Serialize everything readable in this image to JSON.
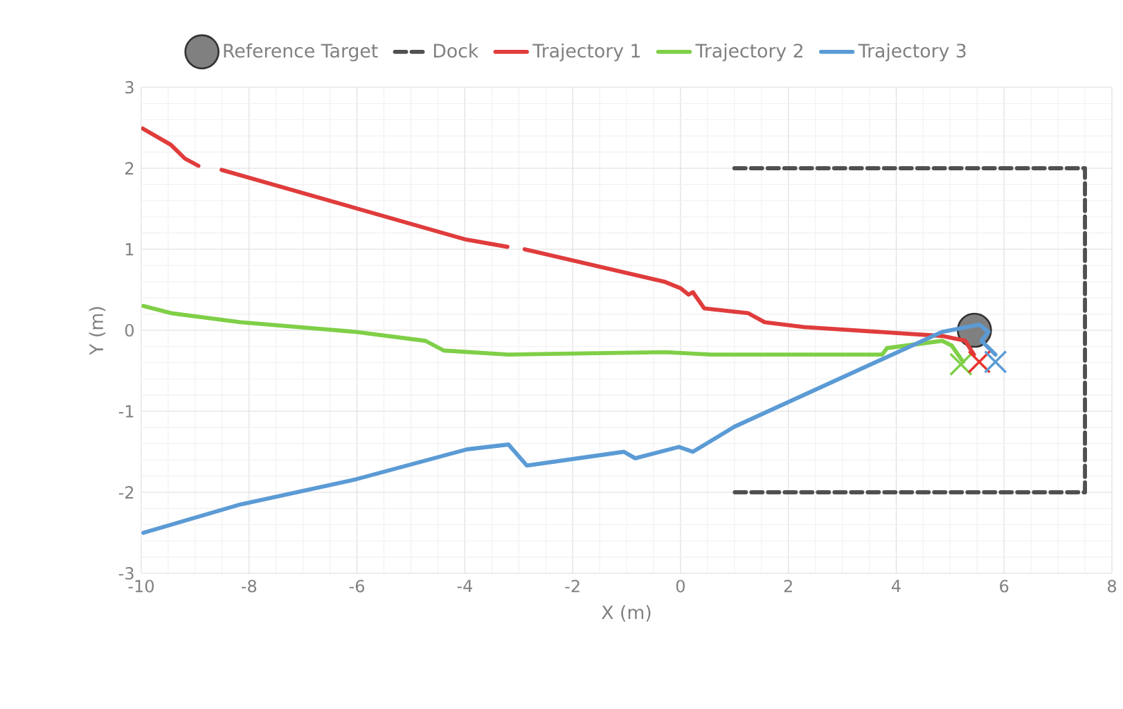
{
  "chart_data": {
    "type": "line",
    "xlabel": "X (m)",
    "ylabel": "Y (m)",
    "xlim": [
      -10,
      8
    ],
    "ylim": [
      -3,
      3
    ],
    "xticks": [
      -10,
      -8,
      -6,
      -4,
      -2,
      0,
      2,
      4,
      6,
      8
    ],
    "yticks": [
      -3,
      -2,
      -1,
      0,
      1,
      2,
      3
    ],
    "grid": true,
    "legend": "top",
    "series": [
      {
        "name": "Reference Target",
        "type": "scatter",
        "marker": "circle",
        "color": "#808080",
        "x": [
          5.45
        ],
        "values": [
          0.0
        ]
      },
      {
        "name": "Dock",
        "line_style": "dashed",
        "color": "#505050",
        "x": [
          1.0,
          7.5,
          7.5,
          1.0
        ],
        "values": [
          2.0,
          2.0,
          -2.0,
          -2.0
        ]
      },
      {
        "name": "Trajectory 1",
        "color": "#e03c3c",
        "x": [
          -9.97,
          -9.45,
          -9.19,
          -8.94,
          -8.8,
          -8.51,
          -3.98,
          -3.21,
          -3.05,
          -2.89,
          -0.3,
          0.0,
          0.15,
          0.23,
          0.44,
          1.26,
          1.56,
          2.29,
          4.85,
          5.28,
          5.44
        ],
        "values": [
          2.49,
          2.29,
          2.12,
          2.03,
          null,
          1.98,
          1.12,
          1.03,
          null,
          1.0,
          0.6,
          0.52,
          0.44,
          0.47,
          0.27,
          0.21,
          0.1,
          0.04,
          -0.07,
          -0.13,
          -0.3
        ]
      },
      {
        "name": "Trajectory 2",
        "color": "#7fcf47",
        "x": [
          -9.96,
          -9.44,
          -8.16,
          -6.02,
          -4.73,
          -4.39,
          -3.19,
          -0.28,
          0.57,
          3.74,
          3.83,
          4.85,
          5.03,
          5.24
        ],
        "values": [
          0.3,
          0.21,
          0.1,
          -0.02,
          -0.13,
          -0.25,
          -0.3,
          -0.27,
          -0.3,
          -0.3,
          -0.22,
          -0.13,
          -0.19,
          -0.39
        ]
      },
      {
        "name": "Trajectory 3",
        "color": "#5b9bd5",
        "x": [
          -9.96,
          -8.16,
          -6.02,
          -3.96,
          -3.19,
          -2.85,
          -1.05,
          -0.84,
          -0.03,
          0.23,
          1.0,
          4.85,
          5.54,
          5.71,
          5.58,
          5.84
        ],
        "values": [
          -2.5,
          -2.15,
          -1.84,
          -1.47,
          -1.41,
          -1.67,
          -1.5,
          -1.58,
          -1.44,
          -1.5,
          -1.19,
          -0.02,
          0.07,
          -0.02,
          -0.13,
          -0.3
        ]
      },
      {
        "type": "scatter",
        "marker": "cross",
        "color": "#7fcf47",
        "x": [
          5.2
        ],
        "values": [
          -0.42
        ]
      },
      {
        "type": "scatter",
        "marker": "cross",
        "color": "#e8332c",
        "x": [
          5.54
        ],
        "values": [
          -0.39
        ]
      },
      {
        "type": "scatter",
        "marker": "cross",
        "color": "#5b9bd5",
        "x": [
          5.84
        ],
        "values": [
          -0.39
        ]
      }
    ]
  }
}
